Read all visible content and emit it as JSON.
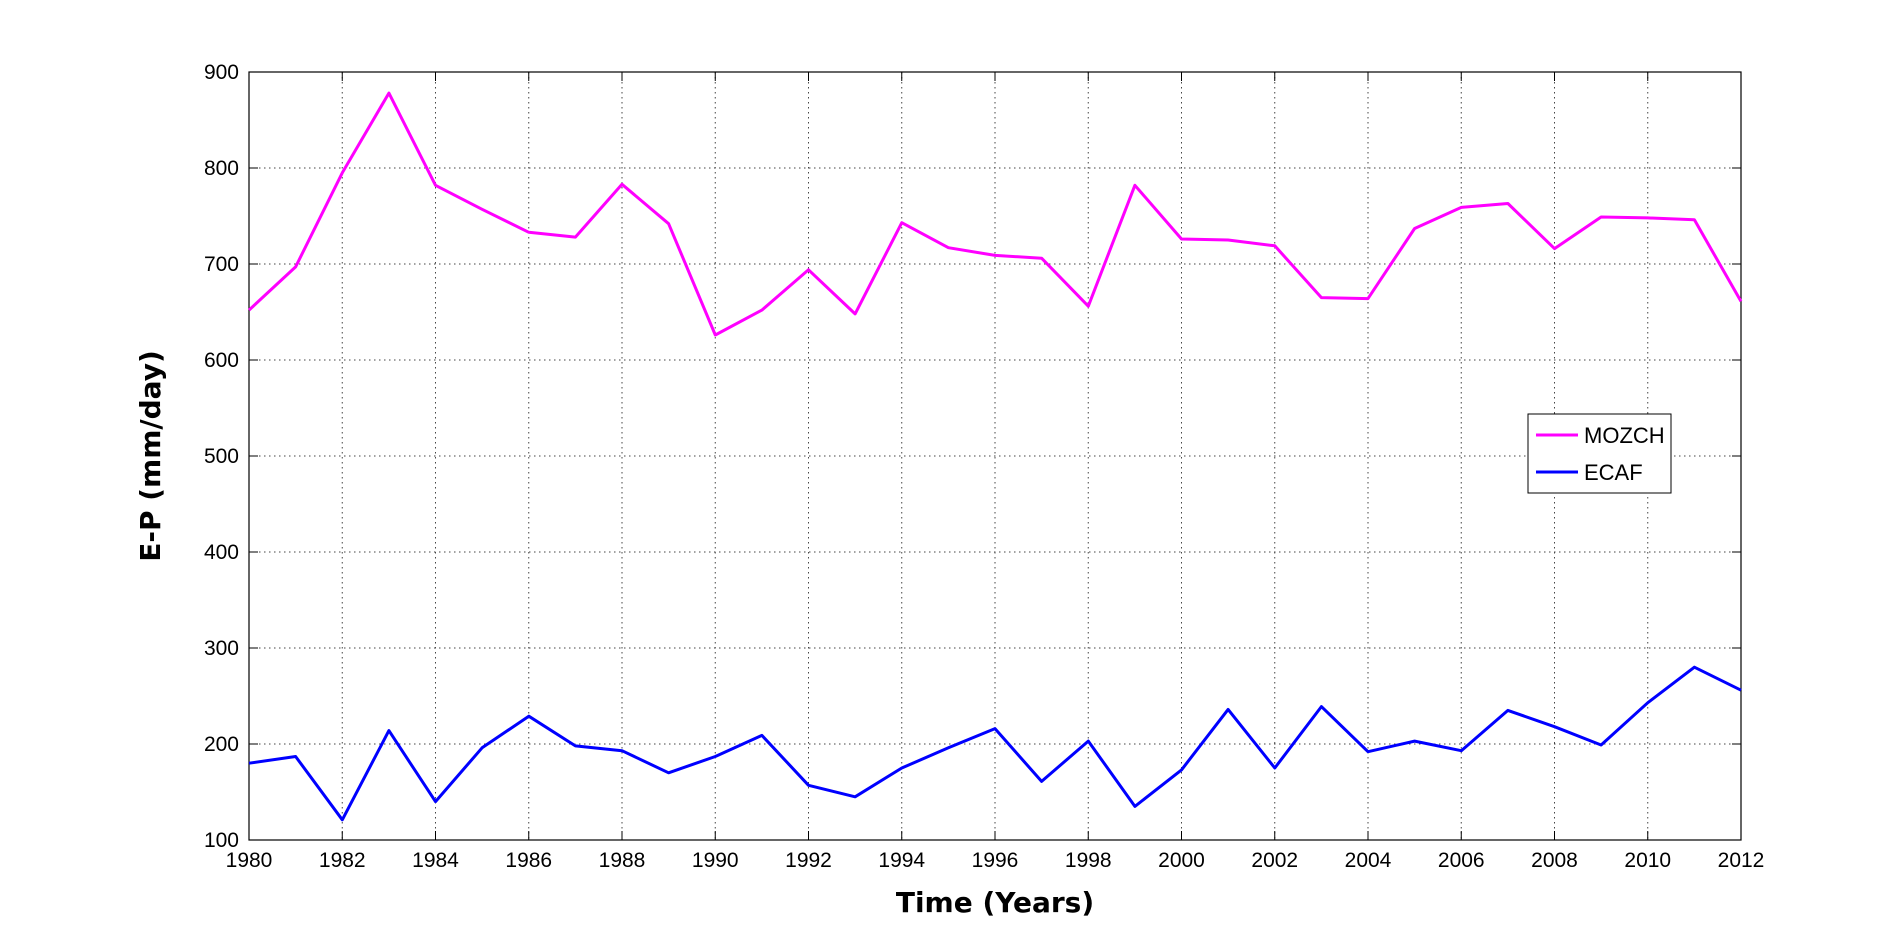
{
  "chart_data": {
    "type": "line",
    "title": "",
    "xlabel": "Time (Years)",
    "ylabel": "E-P (mm/day)",
    "xlim": [
      1980,
      2012
    ],
    "ylim": [
      100,
      900
    ],
    "xticks": [
      1980,
      1982,
      1984,
      1986,
      1988,
      1990,
      1992,
      1994,
      1996,
      1998,
      2000,
      2002,
      2004,
      2006,
      2008,
      2010,
      2012
    ],
    "yticks": [
      100,
      200,
      300,
      400,
      500,
      600,
      700,
      800,
      900
    ],
    "grid": true,
    "legend_position": "right",
    "x": [
      1980,
      1981,
      1982,
      1983,
      1984,
      1985,
      1986,
      1987,
      1988,
      1989,
      1990,
      1991,
      1992,
      1993,
      1994,
      1995,
      1996,
      1997,
      1998,
      1999,
      2000,
      2001,
      2002,
      2003,
      2004,
      2005,
      2006,
      2007,
      2008,
      2009,
      2010,
      2011,
      2012
    ],
    "series": [
      {
        "name": "MOZCH",
        "color": "#ff00ff",
        "values": [
          652,
          697,
          795,
          878,
          782,
          757,
          733,
          728,
          783,
          742,
          626,
          652,
          694,
          648,
          743,
          717,
          709,
          706,
          656,
          782,
          726,
          725,
          719,
          665,
          664,
          737,
          759,
          763,
          716,
          749,
          748,
          746,
          661
        ]
      },
      {
        "name": "ECAF",
        "color": "#0000ff",
        "values": [
          180,
          187,
          121,
          214,
          140,
          196,
          229,
          198,
          193,
          170,
          187,
          209,
          157,
          145,
          175,
          196,
          216,
          161,
          203,
          135,
          173,
          236,
          175,
          239,
          192,
          203,
          193,
          235,
          218,
          199,
          243,
          280,
          256
        ]
      }
    ]
  }
}
